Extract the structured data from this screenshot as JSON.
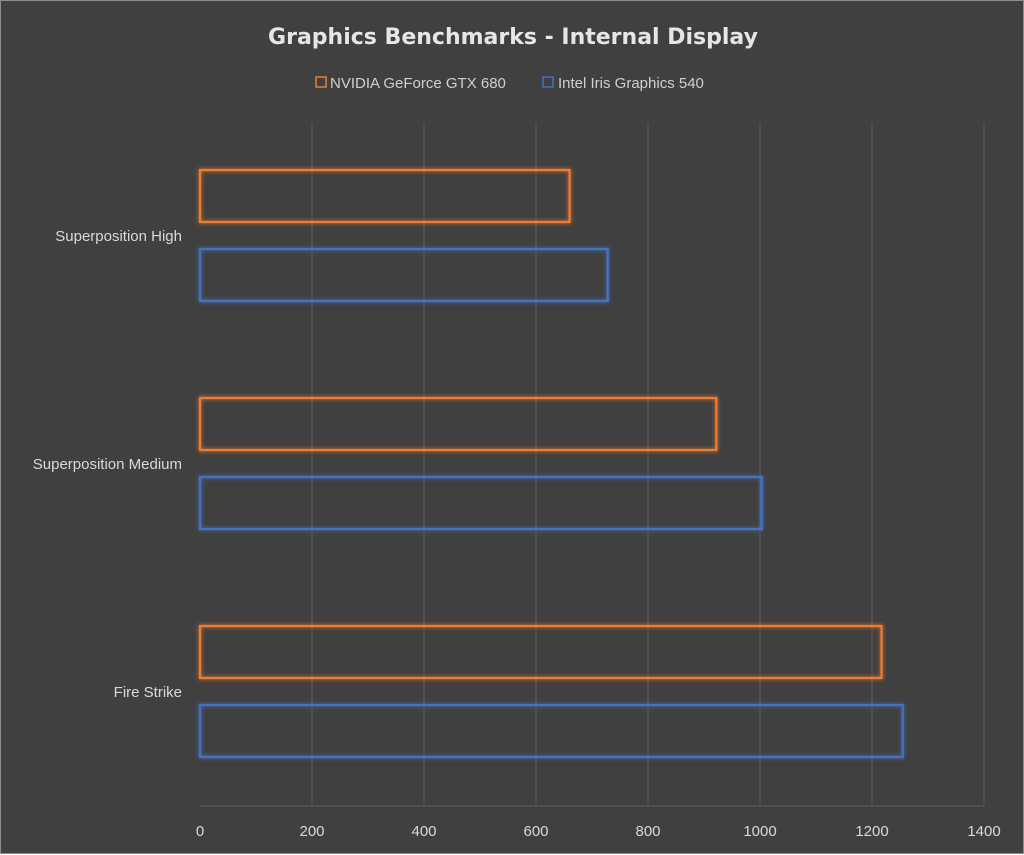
{
  "chart_data": {
    "type": "bar",
    "orientation": "horizontal",
    "title": "Graphics Benchmarks - Internal Display",
    "categories": [
      "Superposition High",
      "Superposition Medium",
      "Fire Strike"
    ],
    "series": [
      {
        "name": "NVIDIA GeForce GTX 680",
        "color": "#ED7D31",
        "values": [
          660,
          922,
          1217
        ]
      },
      {
        "name": "Intel Iris Graphics 540",
        "color": "#4472C4",
        "values": [
          728,
          1003,
          1255
        ]
      }
    ],
    "xlim": [
      0,
      1400
    ],
    "xticks": [
      "0",
      "200",
      "400",
      "600",
      "800",
      "1000",
      "1200",
      "1400"
    ],
    "grid": true,
    "legend_position": "top",
    "bar_style": "outline-glow"
  }
}
